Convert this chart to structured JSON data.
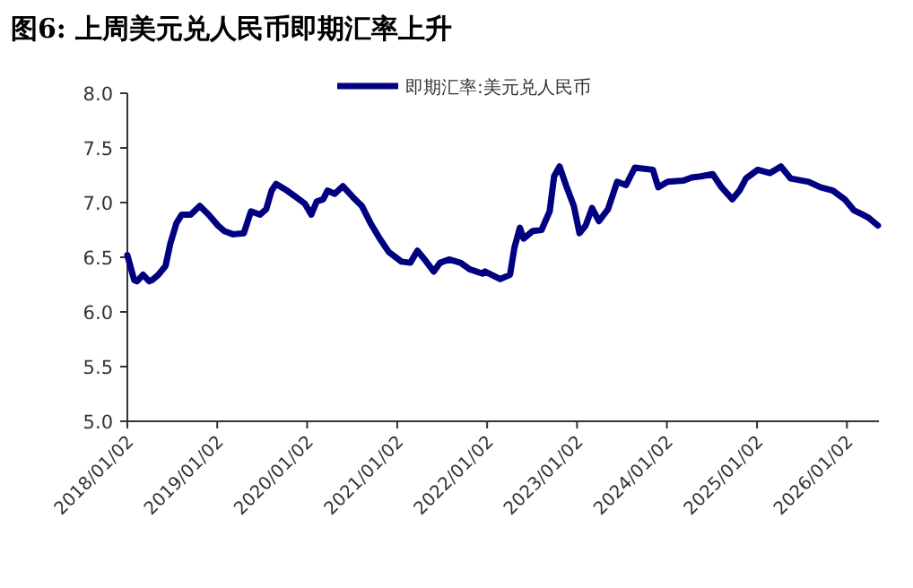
{
  "chart_data": {
    "type": "line",
    "title": "图6:  上周美元兑人民币即期汇率上升",
    "legend": "top",
    "marker": "none",
    "line_style": "solid",
    "grid": false,
    "x": [
      "2018-01-02",
      "2018-01-30",
      "2018-02-10",
      "2018-03-07",
      "2018-04-01",
      "2018-04-12",
      "2018-05-08",
      "2018-06-06",
      "2018-06-25",
      "2018-07-20",
      "2018-08-11",
      "2018-09-16",
      "2018-10-23",
      "2018-11-28",
      "2019-01-05",
      "2019-01-30",
      "2019-03-07",
      "2019-04-20",
      "2019-05-19",
      "2019-06-25",
      "2019-07-20",
      "2019-08-11",
      "2019-08-29",
      "2019-10-12",
      "2019-11-18",
      "2019-12-24",
      "2020-01-19",
      "2020-02-10",
      "2020-03-07",
      "2020-03-25",
      "2020-04-23",
      "2020-05-26",
      "2020-07-06",
      "2020-08-11",
      "2020-09-16",
      "2020-10-23",
      "2020-11-28",
      "2021-01-19",
      "2021-02-24",
      "2021-03-25",
      "2021-04-23",
      "2021-05-30",
      "2021-06-25",
      "2021-07-31",
      "2021-09-16",
      "2021-10-23",
      "2021-12-14",
      "2021-12-24",
      "2022-02-24",
      "2022-04-05",
      "2022-04-23",
      "2022-05-15",
      "2022-05-30",
      "2022-07-06",
      "2022-08-11",
      "2022-09-13",
      "2022-10-01",
      "2022-10-23",
      "2022-11-18",
      "2022-12-20",
      "2023-01-12",
      "2023-02-06",
      "2023-03-04",
      "2023-04-01",
      "2023-05-08",
      "2023-06-14",
      "2023-07-20",
      "2023-08-25",
      "2023-10-01",
      "2023-11-06",
      "2023-11-28",
      "2024-01-05",
      "2024-03-07",
      "2024-04-12",
      "2024-05-19",
      "2024-07-06",
      "2024-08-11",
      "2024-09-24",
      "2024-10-23",
      "2024-11-18",
      "2025-01-05",
      "2025-02-24",
      "2025-04-09",
      "2025-05-19",
      "2025-07-31",
      "2025-09-16",
      "2025-11-06",
      "2025-12-24",
      "2026-01-30",
      "2026-03-07",
      "2026-04-01",
      "2026-05-08"
    ],
    "series": [
      {
        "name": "即期汇率:美元兑人民币",
        "color": "#000080",
        "values": [
          6.52,
          6.29,
          6.28,
          6.34,
          6.28,
          6.29,
          6.34,
          6.42,
          6.62,
          6.81,
          6.89,
          6.89,
          6.97,
          6.89,
          6.79,
          6.74,
          6.71,
          6.72,
          6.92,
          6.89,
          6.94,
          7.11,
          7.17,
          7.11,
          7.05,
          6.99,
          6.89,
          7.01,
          7.03,
          7.11,
          7.08,
          7.15,
          7.05,
          6.97,
          6.81,
          6.67,
          6.55,
          6.46,
          6.45,
          6.56,
          6.48,
          6.37,
          6.45,
          6.48,
          6.45,
          6.39,
          6.35,
          6.37,
          6.3,
          6.34,
          6.59,
          6.77,
          6.67,
          6.74,
          6.75,
          6.92,
          7.24,
          7.33,
          7.16,
          6.97,
          6.72,
          6.79,
          6.95,
          6.83,
          6.94,
          7.19,
          7.16,
          7.32,
          7.31,
          7.3,
          7.14,
          7.19,
          7.2,
          7.23,
          7.24,
          7.26,
          7.14,
          7.03,
          7.11,
          7.22,
          7.3,
          7.27,
          7.33,
          7.22,
          7.19,
          7.14,
          7.11,
          7.03,
          6.93,
          6.89,
          6.86,
          6.79
        ]
      }
    ],
    "xlim": [
      "2018-01-02",
      "2026-05-12"
    ],
    "xticks": [
      {
        "value": "2018-01-02",
        "label": "2018/01/02"
      },
      {
        "value": "2019-01-02",
        "label": "2019/01/02"
      },
      {
        "value": "2020-01-02",
        "label": "2020/01/02"
      },
      {
        "value": "2021-01-02",
        "label": "2021/01/02"
      },
      {
        "value": "2022-01-02",
        "label": "2022/01/02"
      },
      {
        "value": "2023-01-02",
        "label": "2023/01/02"
      },
      {
        "value": "2024-01-02",
        "label": "2024/01/02"
      },
      {
        "value": "2025-01-02",
        "label": "2025/01/02"
      },
      {
        "value": "2026-01-02",
        "label": "2026/01/02"
      }
    ],
    "ylim": [
      5.0,
      8.0
    ],
    "yticks": [
      {
        "value": 5.0,
        "label": "5.0"
      },
      {
        "value": 5.5,
        "label": "5.5"
      },
      {
        "value": 6.0,
        "label": "6.0"
      },
      {
        "value": 6.5,
        "label": "6.5"
      },
      {
        "value": 7.0,
        "label": "7.0"
      },
      {
        "value": 7.5,
        "label": "7.5"
      },
      {
        "value": 8.0,
        "label": "8.0"
      }
    ]
  }
}
